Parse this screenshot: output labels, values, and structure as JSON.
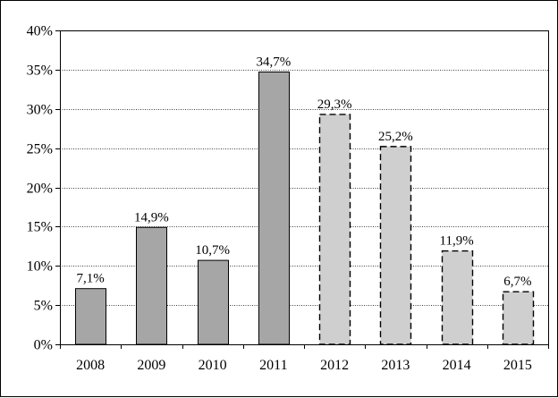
{
  "chart_data": {
    "type": "bar",
    "categories": [
      "2008",
      "2009",
      "2010",
      "2011",
      "2012",
      "2013",
      "2014",
      "2015"
    ],
    "values": [
      7.1,
      14.9,
      10.7,
      34.7,
      29.3,
      25.2,
      11.9,
      6.7
    ],
    "data_labels": [
      "7,1%",
      "14,9%",
      "10,7%",
      "34,7%",
      "29,3%",
      "25,2%",
      "11,9%",
      "6,7%"
    ],
    "projected": [
      false,
      false,
      false,
      false,
      true,
      true,
      true,
      true
    ],
    "ylim": [
      0,
      40
    ],
    "yticks": [
      0,
      5,
      10,
      15,
      20,
      25,
      30,
      35,
      40
    ],
    "ytick_labels": [
      "0%",
      "5%",
      "10%",
      "15%",
      "20%",
      "25%",
      "30%",
      "35%",
      "40%"
    ],
    "grid": true,
    "colors": {
      "actual": "#a6a6a6",
      "projected": "#cfcfcf",
      "grid": "#000000",
      "border": "#000000"
    }
  }
}
